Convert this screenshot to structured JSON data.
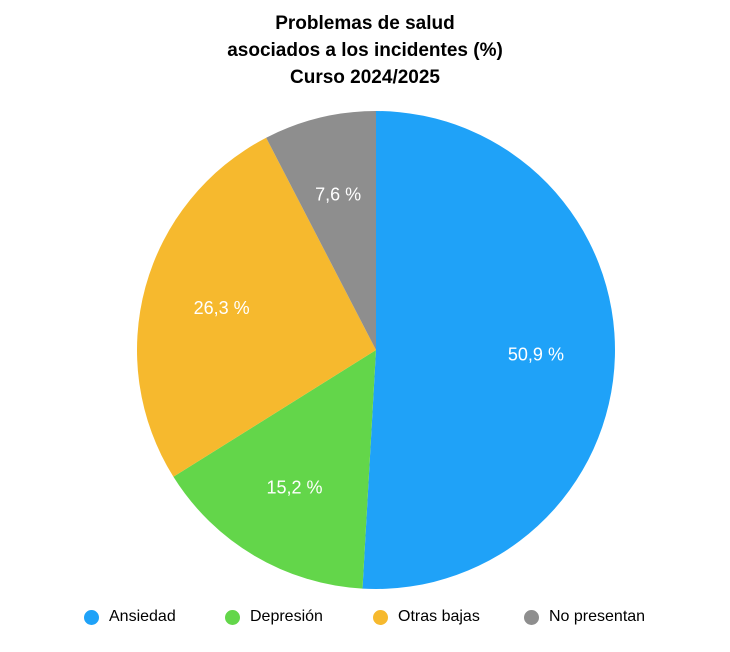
{
  "chart_data": {
    "type": "pie",
    "title": [
      "Problemas de salud",
      "asociados a los incidentes (%)",
      "Curso 2024/2025"
    ],
    "categories": [
      "Ansiedad",
      "Depresión",
      "Otras bajas",
      "No presentan"
    ],
    "values": [
      50.9,
      15.2,
      26.3,
      7.6
    ],
    "value_labels": [
      "50,9 %",
      "15,2 %",
      "26,3 %",
      "7,6 %"
    ],
    "colors": [
      "#1FA2F8",
      "#63D64A",
      "#F6B92E",
      "#8E8E8E"
    ],
    "start": "12 o'clock",
    "direction": "clockwise",
    "legend_placement": "bottom"
  }
}
